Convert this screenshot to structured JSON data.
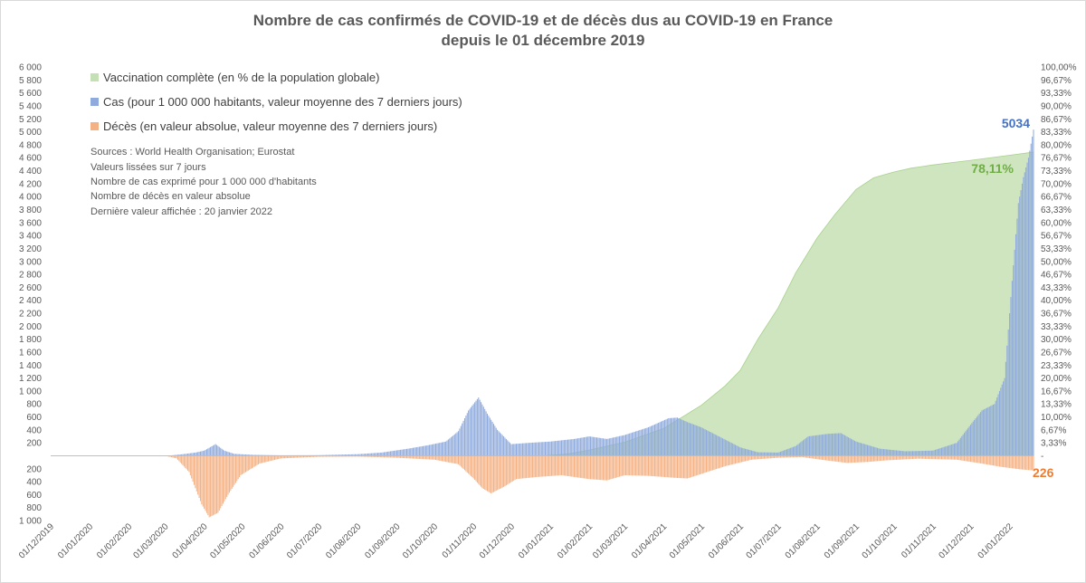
{
  "chart_data": {
    "type": "bar",
    "title": "Nombre de cas confirmés de COVID-19 et de décès dus au COVID-19 en France",
    "subtitle": "depuis le 01 décembre 2019",
    "x_tick_labels": [
      "01/12/2019",
      "01/01/2020",
      "01/02/2020",
      "01/03/2020",
      "01/04/2020",
      "01/05/2020",
      "01/06/2020",
      "01/07/2020",
      "01/08/2020",
      "01/09/2020",
      "01/10/2020",
      "01/11/2020",
      "01/12/2020",
      "01/01/2021",
      "01/02/2021",
      "01/03/2021",
      "01/04/2021",
      "01/05/2021",
      "01/06/2021",
      "01/07/2021",
      "01/08/2021",
      "01/09/2021",
      "01/10/2021",
      "01/11/2021",
      "01/12/2021",
      "01/01/2022"
    ],
    "left_axis_upper": {
      "range": [
        0,
        6000
      ],
      "ticks": [
        "200",
        "400",
        "600",
        "800",
        "1 000",
        "1 200",
        "1 400",
        "1 600",
        "1 800",
        "2 000",
        "2 200",
        "2 400",
        "2 600",
        "2 800",
        "3 000",
        "3 200",
        "3 400",
        "3 600",
        "3 800",
        "4 000",
        "4 200",
        "4 400",
        "4 600",
        "4 800",
        "5 000",
        "5 200",
        "5 400",
        "5 600",
        "5 800",
        "6 000"
      ]
    },
    "left_axis_lower": {
      "range": [
        0,
        1000
      ],
      "ticks": [
        "200",
        "400",
        "600",
        "800",
        "1 000"
      ]
    },
    "right_axis": {
      "range": [
        0,
        100
      ],
      "ticks": [
        "-",
        "3,33%",
        "6,67%",
        "10,00%",
        "13,33%",
        "16,67%",
        "20,00%",
        "23,33%",
        "26,67%",
        "30,00%",
        "33,33%",
        "36,67%",
        "40,00%",
        "43,33%",
        "46,67%",
        "50,00%",
        "53,33%",
        "56,67%",
        "60,00%",
        "63,33%",
        "66,67%",
        "70,00%",
        "73,33%",
        "76,67%",
        "80,00%",
        "83,33%",
        "86,67%",
        "90,00%",
        "93,33%",
        "96,67%",
        "100,00%"
      ]
    },
    "series": [
      {
        "name": "Vaccination complète (en % de la population globale)",
        "kind": "area",
        "color": "#c5e0b4",
        "points": [
          [
            "2020-12-27",
            0
          ],
          [
            "2021-01-15",
            0.5
          ],
          [
            "2021-02-01",
            1.5
          ],
          [
            "2021-03-01",
            3.5
          ],
          [
            "2021-04-01",
            7
          ],
          [
            "2021-05-01",
            13
          ],
          [
            "2021-05-20",
            18
          ],
          [
            "2021-06-01",
            22
          ],
          [
            "2021-06-15",
            30
          ],
          [
            "2021-07-01",
            38
          ],
          [
            "2021-07-15",
            47
          ],
          [
            "2021-08-01",
            56
          ],
          [
            "2021-08-15",
            62
          ],
          [
            "2021-09-01",
            68.5
          ],
          [
            "2021-09-15",
            71.5
          ],
          [
            "2021-10-01",
            73
          ],
          [
            "2021-10-15",
            74
          ],
          [
            "2021-11-01",
            74.8
          ],
          [
            "2021-12-01",
            76
          ],
          [
            "2022-01-01",
            77.3
          ],
          [
            "2022-01-20",
            78.11
          ]
        ]
      },
      {
        "name": "Cas (pour 1 000 000 habitants, valeur moyenne des 7 derniers jours)",
        "kind": "bar",
        "color": "#8faadc",
        "points": [
          [
            "2020-02-25",
            0
          ],
          [
            "2020-03-05",
            5
          ],
          [
            "2020-03-15",
            25
          ],
          [
            "2020-03-25",
            50
          ],
          [
            "2020-04-01",
            80
          ],
          [
            "2020-04-10",
            180
          ],
          [
            "2020-04-17",
            80
          ],
          [
            "2020-04-25",
            30
          ],
          [
            "2020-05-10",
            15
          ],
          [
            "2020-06-01",
            8
          ],
          [
            "2020-07-01",
            10
          ],
          [
            "2020-08-01",
            25
          ],
          [
            "2020-08-20",
            50
          ],
          [
            "2020-09-10",
            110
          ],
          [
            "2020-09-25",
            160
          ],
          [
            "2020-10-10",
            220
          ],
          [
            "2020-10-20",
            380
          ],
          [
            "2020-10-28",
            700
          ],
          [
            "2020-11-05",
            900
          ],
          [
            "2020-11-12",
            650
          ],
          [
            "2020-11-20",
            400
          ],
          [
            "2020-12-01",
            180
          ],
          [
            "2020-12-15",
            200
          ],
          [
            "2021-01-01",
            220
          ],
          [
            "2021-01-20",
            260
          ],
          [
            "2021-02-01",
            300
          ],
          [
            "2021-02-15",
            260
          ],
          [
            "2021-03-01",
            320
          ],
          [
            "2021-03-20",
            440
          ],
          [
            "2021-04-05",
            580
          ],
          [
            "2021-04-12",
            590
          ],
          [
            "2021-04-20",
            520
          ],
          [
            "2021-05-01",
            440
          ],
          [
            "2021-05-15",
            300
          ],
          [
            "2021-06-01",
            130
          ],
          [
            "2021-06-15",
            55
          ],
          [
            "2021-07-01",
            50
          ],
          [
            "2021-07-15",
            150
          ],
          [
            "2021-07-25",
            300
          ],
          [
            "2021-08-10",
            340
          ],
          [
            "2021-08-20",
            350
          ],
          [
            "2021-09-01",
            220
          ],
          [
            "2021-09-20",
            110
          ],
          [
            "2021-10-10",
            70
          ],
          [
            "2021-11-01",
            80
          ],
          [
            "2021-11-20",
            200
          ],
          [
            "2021-12-01",
            480
          ],
          [
            "2021-12-10",
            700
          ],
          [
            "2021-12-20",
            800
          ],
          [
            "2021-12-28",
            1200
          ],
          [
            "2022-01-03",
            2700
          ],
          [
            "2022-01-08",
            3900
          ],
          [
            "2022-01-12",
            4300
          ],
          [
            "2022-01-16",
            4600
          ],
          [
            "2022-01-20",
            5034
          ]
        ]
      },
      {
        "name": "Décès (en valeur absolue, valeur moyenne des 7 derniers jours)",
        "kind": "bar",
        "color": "#f4b183",
        "points": [
          [
            "2020-03-01",
            0
          ],
          [
            "2020-03-10",
            40
          ],
          [
            "2020-03-20",
            250
          ],
          [
            "2020-03-30",
            750
          ],
          [
            "2020-04-05",
            950
          ],
          [
            "2020-04-12",
            880
          ],
          [
            "2020-04-20",
            600
          ],
          [
            "2020-04-30",
            300
          ],
          [
            "2020-05-15",
            120
          ],
          [
            "2020-06-01",
            40
          ],
          [
            "2020-07-01",
            15
          ],
          [
            "2020-08-01",
            12
          ],
          [
            "2020-09-01",
            30
          ],
          [
            "2020-10-01",
            60
          ],
          [
            "2020-10-20",
            130
          ],
          [
            "2020-11-01",
            350
          ],
          [
            "2020-11-08",
            500
          ],
          [
            "2020-11-15",
            580
          ],
          [
            "2020-11-25",
            480
          ],
          [
            "2020-12-05",
            360
          ],
          [
            "2020-12-20",
            330
          ],
          [
            "2021-01-10",
            300
          ],
          [
            "2021-02-01",
            360
          ],
          [
            "2021-02-15",
            380
          ],
          [
            "2021-03-01",
            300
          ],
          [
            "2021-03-20",
            310
          ],
          [
            "2021-04-10",
            340
          ],
          [
            "2021-04-20",
            350
          ],
          [
            "2021-05-01",
            280
          ],
          [
            "2021-05-20",
            160
          ],
          [
            "2021-06-10",
            60
          ],
          [
            "2021-07-01",
            30
          ],
          [
            "2021-07-20",
            20
          ],
          [
            "2021-08-10",
            75
          ],
          [
            "2021-08-25",
            110
          ],
          [
            "2021-09-10",
            95
          ],
          [
            "2021-09-25",
            70
          ],
          [
            "2021-10-20",
            45
          ],
          [
            "2021-11-20",
            60
          ],
          [
            "2021-12-10",
            120
          ],
          [
            "2021-12-25",
            170
          ],
          [
            "2022-01-10",
            210
          ],
          [
            "2022-01-20",
            226
          ]
        ]
      }
    ],
    "annotations": [
      {
        "text": "5034",
        "color": "#4472c4"
      },
      {
        "text": "78,11%",
        "color": "#70ad47"
      },
      {
        "text": "226",
        "color": "#ed7d31"
      }
    ],
    "notes": [
      "Sources : World Health Organisation; Eurostat",
      "Valeurs lissées sur 7 jours",
      "Nombre de cas exprimé pour 1 000 000 d'habitants",
      "Nombre de décès en valeur absolue",
      "Dernière valeur affichée : 20 janvier 2022"
    ],
    "legend_position": "top-left",
    "grid": false
  }
}
